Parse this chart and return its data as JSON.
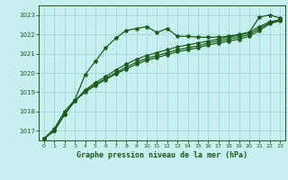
{
  "xlabel": "Graphe pression niveau de la mer (hPa)",
  "ylim": [
    1016.5,
    1023.5
  ],
  "xlim": [
    -0.5,
    23.5
  ],
  "yticks": [
    1017,
    1018,
    1019,
    1020,
    1021,
    1022,
    1023
  ],
  "xticks": [
    0,
    1,
    2,
    3,
    4,
    5,
    6,
    7,
    8,
    9,
    10,
    11,
    12,
    13,
    14,
    15,
    16,
    17,
    18,
    19,
    20,
    21,
    22,
    23
  ],
  "bg_color": "#c8efef",
  "grid_color": "#9dd8d8",
  "line_color": "#1a5c1a",
  "lines": [
    [
      1016.6,
      1017.1,
      1018.0,
      1018.6,
      1019.9,
      1020.6,
      1021.3,
      1021.8,
      1022.2,
      1022.3,
      1022.4,
      1022.1,
      1022.3,
      1021.9,
      1021.9,
      1021.85,
      1021.85,
      1021.85,
      1021.9,
      1022.0,
      1022.1,
      1022.9,
      1023.0,
      1022.85
    ],
    [
      1016.6,
      1017.0,
      1017.85,
      1018.55,
      1019.0,
      1019.35,
      1019.65,
      1019.95,
      1020.2,
      1020.45,
      1020.65,
      1020.8,
      1020.95,
      1021.1,
      1021.2,
      1021.3,
      1021.45,
      1021.55,
      1021.65,
      1021.75,
      1021.9,
      1022.2,
      1022.55,
      1022.7
    ],
    [
      1016.6,
      1017.0,
      1017.85,
      1018.55,
      1019.05,
      1019.4,
      1019.7,
      1020.0,
      1020.3,
      1020.55,
      1020.75,
      1020.9,
      1021.05,
      1021.2,
      1021.3,
      1021.4,
      1021.55,
      1021.65,
      1021.75,
      1021.85,
      1022.0,
      1022.3,
      1022.6,
      1022.75
    ],
    [
      1016.6,
      1017.0,
      1017.85,
      1018.55,
      1019.1,
      1019.5,
      1019.8,
      1020.15,
      1020.45,
      1020.7,
      1020.9,
      1021.05,
      1021.2,
      1021.35,
      1021.45,
      1021.55,
      1021.65,
      1021.75,
      1021.85,
      1021.95,
      1022.1,
      1022.4,
      1022.65,
      1022.75
    ]
  ],
  "marker": "*",
  "markersize": 3,
  "linewidth": 0.9
}
